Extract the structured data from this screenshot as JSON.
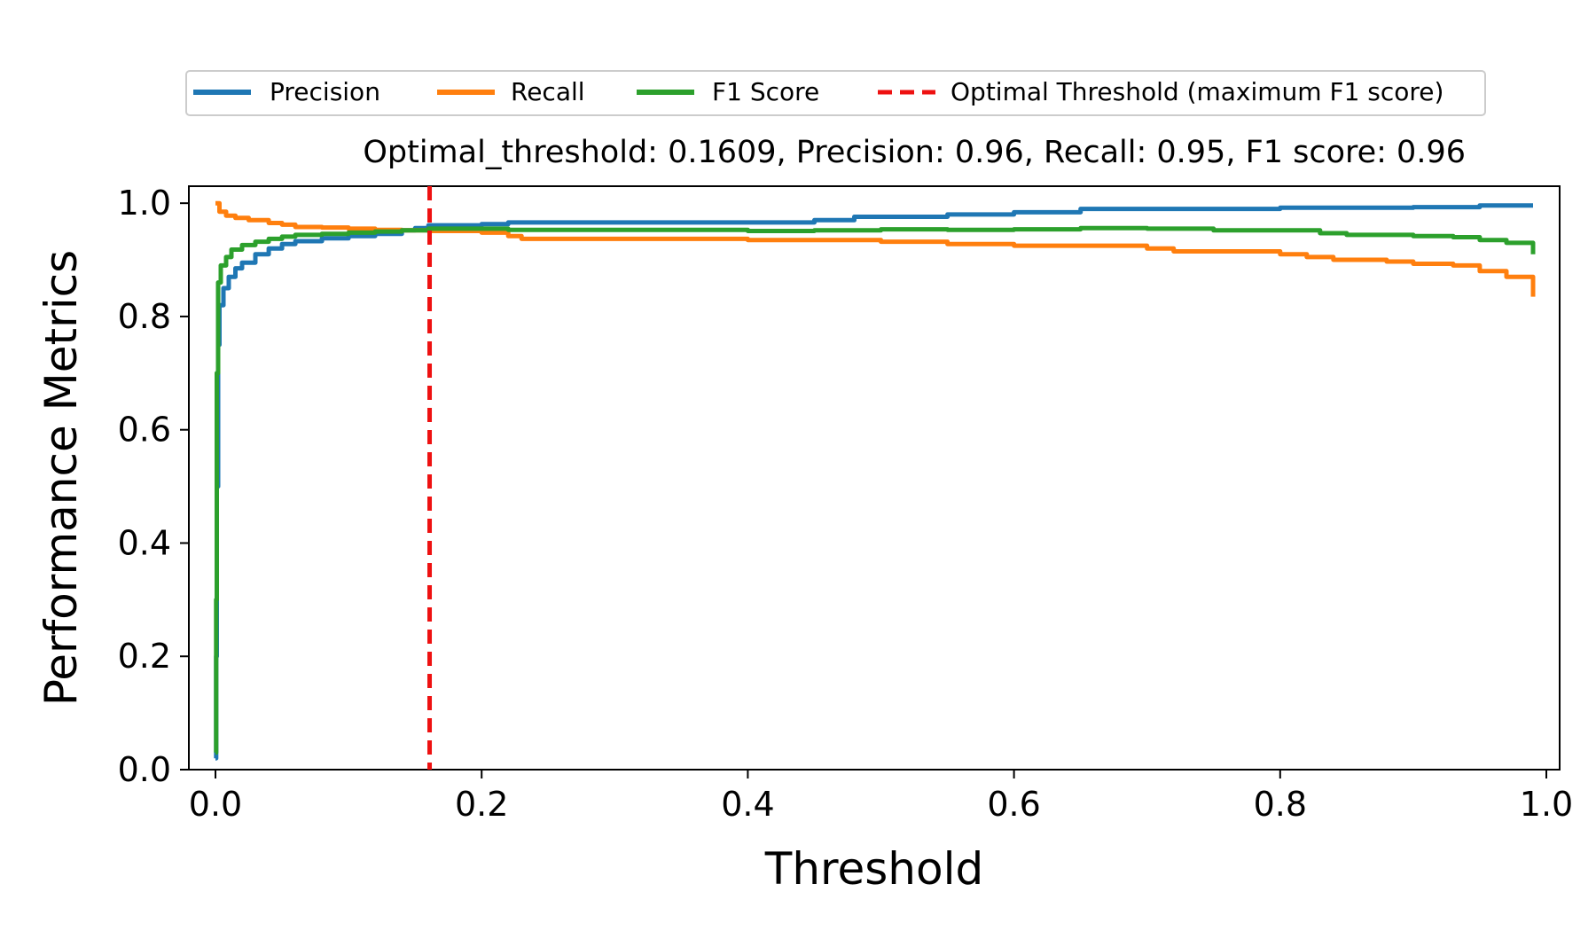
{
  "chart_data": {
    "type": "line",
    "title": "",
    "subtitle": "Optimal_threshold: 0.1609, Precision: 0.96, Recall: 0.95, F1 score: 0.96",
    "xlabel": "Threshold",
    "ylabel": "Performance Metrics",
    "xlim": [
      -0.02,
      1.01
    ],
    "ylim": [
      0.0,
      1.03
    ],
    "xticks": [
      "0.0",
      "0.2",
      "0.4",
      "0.6",
      "0.8",
      "1.0"
    ],
    "yticks": [
      "0.0",
      "0.2",
      "0.4",
      "0.6",
      "0.8",
      "1.0"
    ],
    "grid": false,
    "legend_position": "top-center",
    "series": [
      {
        "name": "Precision",
        "color": "#1f77b4",
        "style": "solid",
        "points": [
          [
            0.0,
            0.02
          ],
          [
            0.0005,
            0.2
          ],
          [
            0.001,
            0.5
          ],
          [
            0.002,
            0.75
          ],
          [
            0.003,
            0.82
          ],
          [
            0.006,
            0.85
          ],
          [
            0.01,
            0.87
          ],
          [
            0.015,
            0.885
          ],
          [
            0.02,
            0.895
          ],
          [
            0.03,
            0.91
          ],
          [
            0.04,
            0.92
          ],
          [
            0.05,
            0.928
          ],
          [
            0.06,
            0.933
          ],
          [
            0.08,
            0.938
          ],
          [
            0.1,
            0.942
          ],
          [
            0.12,
            0.946
          ],
          [
            0.14,
            0.952
          ],
          [
            0.15,
            0.956
          ],
          [
            0.16,
            0.961
          ],
          [
            0.2,
            0.963
          ],
          [
            0.22,
            0.966
          ],
          [
            0.3,
            0.966
          ],
          [
            0.4,
            0.966
          ],
          [
            0.45,
            0.97
          ],
          [
            0.48,
            0.976
          ],
          [
            0.55,
            0.98
          ],
          [
            0.6,
            0.984
          ],
          [
            0.65,
            0.99
          ],
          [
            0.75,
            0.99
          ],
          [
            0.8,
            0.992
          ],
          [
            0.9,
            0.993
          ],
          [
            0.95,
            0.996
          ],
          [
            0.99,
            0.996
          ]
        ]
      },
      {
        "name": "Recall",
        "color": "#ff7f0e",
        "style": "solid",
        "points": [
          [
            0.0,
            1.0
          ],
          [
            0.003,
            0.985
          ],
          [
            0.008,
            0.978
          ],
          [
            0.015,
            0.974
          ],
          [
            0.025,
            0.97
          ],
          [
            0.04,
            0.965
          ],
          [
            0.05,
            0.962
          ],
          [
            0.06,
            0.958
          ],
          [
            0.08,
            0.957
          ],
          [
            0.1,
            0.955
          ],
          [
            0.12,
            0.953
          ],
          [
            0.14,
            0.952
          ],
          [
            0.16,
            0.951
          ],
          [
            0.2,
            0.948
          ],
          [
            0.22,
            0.942
          ],
          [
            0.23,
            0.937
          ],
          [
            0.3,
            0.937
          ],
          [
            0.4,
            0.935
          ],
          [
            0.5,
            0.932
          ],
          [
            0.55,
            0.928
          ],
          [
            0.6,
            0.925
          ],
          [
            0.65,
            0.925
          ],
          [
            0.7,
            0.92
          ],
          [
            0.72,
            0.915
          ],
          [
            0.8,
            0.91
          ],
          [
            0.82,
            0.905
          ],
          [
            0.84,
            0.9
          ],
          [
            0.88,
            0.897
          ],
          [
            0.9,
            0.893
          ],
          [
            0.93,
            0.89
          ],
          [
            0.95,
            0.88
          ],
          [
            0.97,
            0.87
          ],
          [
            0.99,
            0.835
          ]
        ]
      },
      {
        "name": "F1 Score",
        "color": "#2ca02c",
        "style": "solid",
        "points": [
          [
            0.0,
            0.03
          ],
          [
            0.0005,
            0.3
          ],
          [
            0.001,
            0.7
          ],
          [
            0.002,
            0.86
          ],
          [
            0.004,
            0.89
          ],
          [
            0.008,
            0.905
          ],
          [
            0.012,
            0.918
          ],
          [
            0.02,
            0.926
          ],
          [
            0.03,
            0.932
          ],
          [
            0.04,
            0.937
          ],
          [
            0.05,
            0.941
          ],
          [
            0.06,
            0.944
          ],
          [
            0.08,
            0.946
          ],
          [
            0.1,
            0.948
          ],
          [
            0.12,
            0.95
          ],
          [
            0.14,
            0.952
          ],
          [
            0.16,
            0.955
          ],
          [
            0.2,
            0.955
          ],
          [
            0.22,
            0.953
          ],
          [
            0.3,
            0.953
          ],
          [
            0.4,
            0.951
          ],
          [
            0.45,
            0.952
          ],
          [
            0.5,
            0.954
          ],
          [
            0.55,
            0.953
          ],
          [
            0.6,
            0.954
          ],
          [
            0.65,
            0.956
          ],
          [
            0.7,
            0.955
          ],
          [
            0.75,
            0.952
          ],
          [
            0.8,
            0.952
          ],
          [
            0.83,
            0.947
          ],
          [
            0.85,
            0.944
          ],
          [
            0.9,
            0.942
          ],
          [
            0.93,
            0.94
          ],
          [
            0.95,
            0.935
          ],
          [
            0.97,
            0.93
          ],
          [
            0.99,
            0.91
          ]
        ]
      }
    ],
    "vlines": [
      {
        "name": "Optimal Threshold (maximum F1 score)",
        "x": 0.1609,
        "color": "#ee1111",
        "style": "dashed"
      }
    ]
  }
}
